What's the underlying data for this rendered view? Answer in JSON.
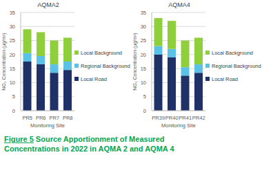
{
  "caption": {
    "label": "Figure 5",
    "text": "Source Apportionment of Measured Concentrations in 2022 in AQMA 2 and AQMA 4"
  },
  "chart_data": [
    {
      "type": "bar",
      "title": "AQMA2",
      "x_label": "Monitoring Site",
      "y_label": "NO₂ Concentration (µg/m³)",
      "categories": [
        "PR5",
        "PR6",
        "PR7",
        "PR8"
      ],
      "series": [
        {
          "name": "Local Road",
          "color": "#1f3167",
          "values": [
            17.5,
            16.5,
            13.5,
            14.5
          ]
        },
        {
          "name": "Regional Background",
          "color": "#5bc2e7",
          "values": [
            3,
            3,
            3,
            3
          ]
        },
        {
          "name": "Local Background",
          "color": "#8fcf3c",
          "values": [
            8.5,
            8.5,
            8.5,
            8.5
          ]
        }
      ],
      "stacked": true,
      "ylim": [
        0,
        35
      ],
      "yticks": [
        0,
        5,
        10,
        15,
        20,
        25,
        30,
        35
      ],
      "grid": true,
      "legend": "right"
    },
    {
      "type": "bar",
      "title": "AQMA4",
      "x_label": "Monitoring Site",
      "y_label": "NO₂ Concentration (µg/m³)",
      "categories": [
        "PR39",
        "PR40",
        "PR41",
        "PR42"
      ],
      "series": [
        {
          "name": "Local Road",
          "color": "#1f3167",
          "values": [
            20,
            19,
            12.5,
            13.5
          ]
        },
        {
          "name": "Regional Background",
          "color": "#5bc2e7",
          "values": [
            3,
            3,
            3,
            3
          ]
        },
        {
          "name": "Local Background",
          "color": "#8fcf3c",
          "values": [
            10,
            10,
            9.5,
            9.5
          ]
        }
      ],
      "stacked": true,
      "ylim": [
        0,
        35
      ],
      "yticks": [
        0,
        5,
        10,
        15,
        20,
        25,
        30,
        35
      ],
      "grid": true,
      "legend": "right"
    }
  ]
}
